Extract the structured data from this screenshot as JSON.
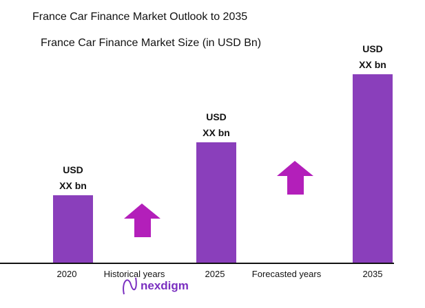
{
  "chart_data": {
    "type": "bar",
    "title": "France Car Finance Market Outlook to 2035",
    "subtitle": "France Car Finance Market Size (in USD Bn)",
    "categories": [
      "2020",
      "2025",
      "2035"
    ],
    "values_relative": [
      0.36,
      0.64,
      1.0
    ],
    "data_labels": [
      {
        "line1": "USD",
        "line2": "XX bn"
      },
      {
        "line1": "USD",
        "line2": "XX bn"
      },
      {
        "line1": "USD",
        "line2": "XX bn"
      }
    ],
    "period_labels": [
      "Historical years",
      "Forecasted years"
    ],
    "bar_color": "#8a3fbb",
    "arrow_color": "#b31fba",
    "grid": false,
    "legend": "none"
  },
  "logo": {
    "text": "nexdigm",
    "color": "#7a2fc0"
  }
}
